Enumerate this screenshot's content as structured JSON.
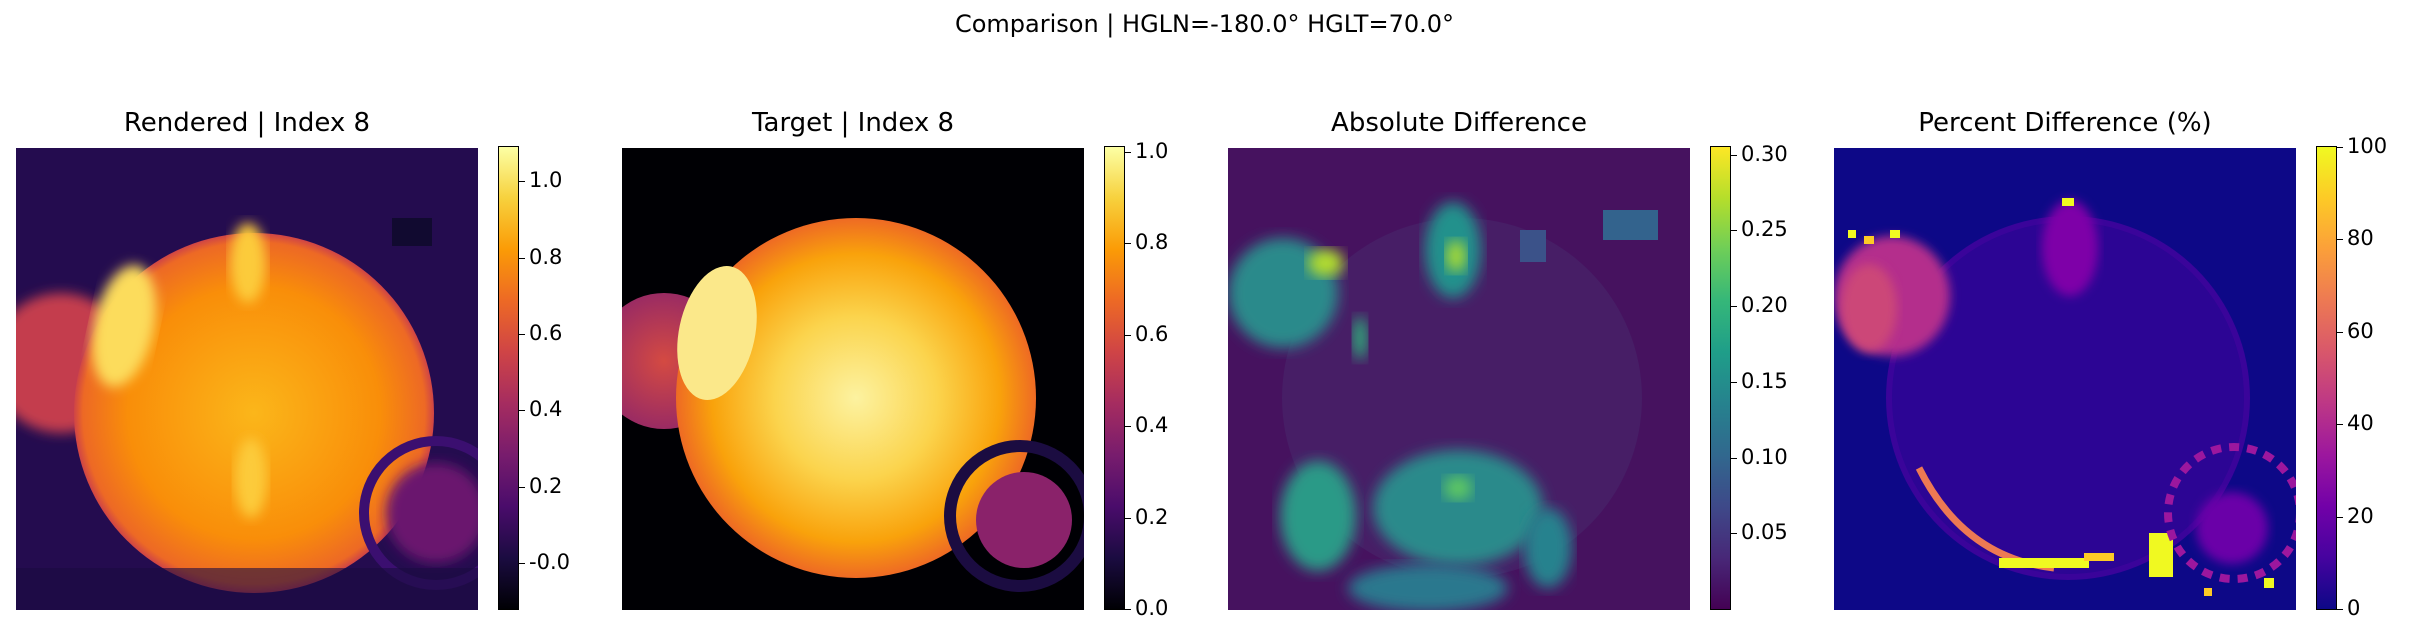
{
  "suptitle": "Comparison | HGLN=-180.0° HGLT=70.0°",
  "chart_data": [
    {
      "type": "heatmap",
      "title": "Rendered | Index 8",
      "colormap": "inferno",
      "colorbar_range": [
        -0.12,
        1.09
      ],
      "colorbar_ticks": [
        "-0.0",
        "0.2",
        "0.4",
        "0.6",
        "0.8",
        "1.0"
      ],
      "colorbar_tick_values": [
        0.0,
        0.2,
        0.4,
        0.6,
        0.8,
        1.0
      ]
    },
    {
      "type": "heatmap",
      "title": "Target | Index 8",
      "colormap": "inferno",
      "colorbar_range": [
        0.0,
        1.01
      ],
      "colorbar_ticks": [
        "0.0",
        "0.2",
        "0.4",
        "0.6",
        "0.8",
        "1.0"
      ],
      "colorbar_tick_values": [
        0.0,
        0.2,
        0.4,
        0.6,
        0.8,
        1.0
      ]
    },
    {
      "type": "heatmap",
      "title": "Absolute Difference",
      "colormap": "viridis",
      "colorbar_range": [
        0.0,
        0.305
      ],
      "colorbar_ticks": [
        "0.05",
        "0.10",
        "0.15",
        "0.20",
        "0.25",
        "0.30"
      ],
      "colorbar_tick_values": [
        0.05,
        0.1,
        0.15,
        0.2,
        0.25,
        0.3
      ]
    },
    {
      "type": "heatmap",
      "title": "Percent Difference (%)",
      "colormap": "plasma",
      "colorbar_range": [
        0,
        100
      ],
      "colorbar_ticks": [
        "0",
        "20",
        "40",
        "60",
        "80",
        "100"
      ],
      "colorbar_tick_values": [
        0,
        20,
        40,
        60,
        80,
        100
      ]
    }
  ],
  "colors": {
    "inferno": [
      "#000004",
      "#1b0c41",
      "#4a0c6b",
      "#781c6d",
      "#a52c60",
      "#cf4446",
      "#ed6925",
      "#fb9b06",
      "#f7d13d",
      "#fcffa4"
    ],
    "viridis": [
      "#440154",
      "#482878",
      "#3e4989",
      "#31688e",
      "#26828e",
      "#1f9e89",
      "#35b779",
      "#6ece58",
      "#b5de2b",
      "#fde725"
    ],
    "plasma": [
      "#0d0887",
      "#46039f",
      "#7201a8",
      "#9c179e",
      "#bd3786",
      "#d8576b",
      "#ed7953",
      "#fb9f3a",
      "#fdca26",
      "#f0f921"
    ]
  }
}
